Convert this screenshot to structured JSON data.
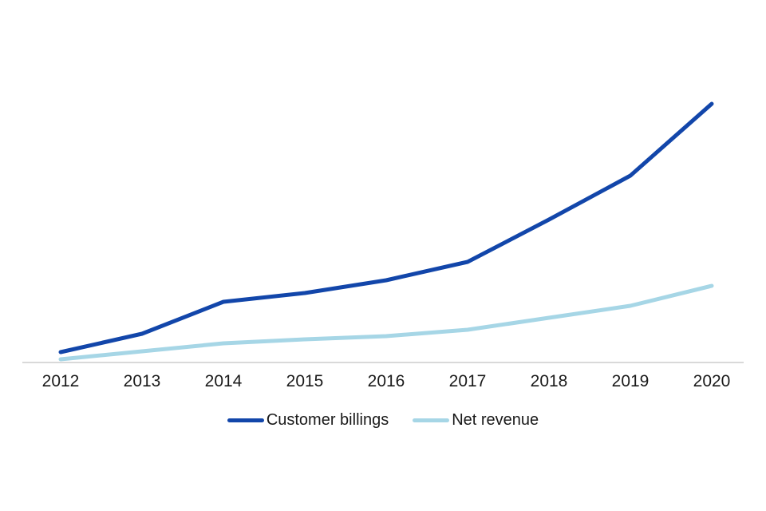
{
  "chart": {
    "background_color": "#ffffff",
    "axis_color": "#d9d9d9",
    "label_color": "#1a1a1a"
  },
  "chart_data": {
    "type": "line",
    "title": "",
    "xlabel": "",
    "ylabel": "",
    "x": [
      "2012",
      "2013",
      "2014",
      "2015",
      "2016",
      "2017",
      "2018",
      "2019",
      "2020"
    ],
    "series": [
      {
        "name": "Customer billings",
        "color": "#1246aa",
        "values": [
          13,
          36,
          76,
          87,
          103,
          126,
          179,
          234,
          324
        ]
      },
      {
        "name": "Net revenue",
        "color": "#a6d6e6",
        "values": [
          4,
          14,
          24,
          29,
          33,
          41,
          56,
          71,
          96
        ]
      }
    ],
    "ylim": [
      0,
      350
    ],
    "y_axis_visible": false,
    "grid": false,
    "legend_position": "bottom",
    "units": "relative (no y-axis shown)"
  }
}
